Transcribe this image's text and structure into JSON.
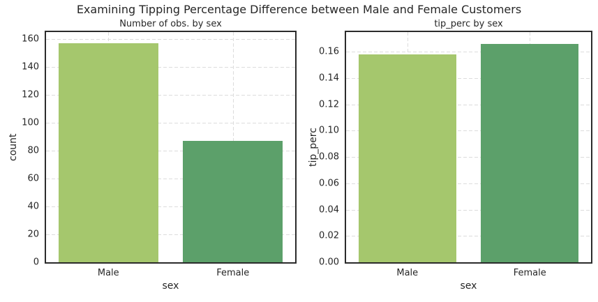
{
  "figure": {
    "title": "Examining Tipping Percentage Difference between Male and Female Customers",
    "background_color": "#ffffff",
    "text_color": "#262626",
    "spine_color": "#2b2b2b",
    "grid_color": "#dcdcdc"
  },
  "chart_data": [
    {
      "type": "bar",
      "title": "Number of obs. by sex",
      "xlabel": "sex",
      "ylabel": "count",
      "categories": [
        "Male",
        "Female"
      ],
      "values": [
        157,
        87
      ],
      "bar_colors": [
        "#a5c76d",
        "#5ca06a"
      ],
      "ylim": [
        0,
        165
      ],
      "yticks": [
        0,
        20,
        40,
        60,
        80,
        100,
        120,
        140,
        160
      ],
      "ytick_labels": [
        "0",
        "20",
        "40",
        "60",
        "80",
        "100",
        "120",
        "140",
        "160"
      ],
      "grid": "dashed",
      "legend": "none"
    },
    {
      "type": "bar",
      "title": "tip_perc by sex",
      "xlabel": "sex",
      "ylabel": "tip_perc",
      "categories": [
        "Male",
        "Female"
      ],
      "values": [
        0.158,
        0.166
      ],
      "bar_colors": [
        "#a5c76d",
        "#5ca06a"
      ],
      "ylim": [
        0,
        0.175
      ],
      "yticks": [
        0,
        0.02,
        0.04,
        0.06,
        0.08,
        0.1,
        0.12,
        0.14,
        0.16
      ],
      "ytick_labels": [
        "0.00",
        "0.02",
        "0.04",
        "0.06",
        "0.08",
        "0.10",
        "0.12",
        "0.14",
        "0.16"
      ],
      "grid": "dashed",
      "legend": "none"
    }
  ]
}
